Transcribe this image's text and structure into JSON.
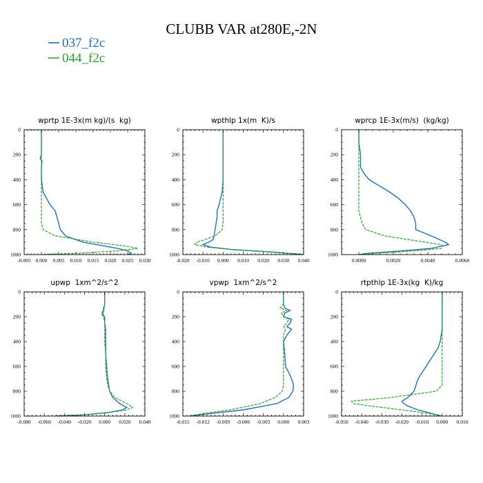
{
  "title": "CLUBB VAR at280E,-2N",
  "colors": {
    "s037": "#1f6fb3",
    "s044": "#2ca02c",
    "axis": "#000000"
  },
  "legend": [
    {
      "name": "037_f2c",
      "color": "#1f6fb3"
    },
    {
      "name": "044_f2c",
      "color": "#2ca02c"
    }
  ],
  "chart_data": [
    {
      "type": "line",
      "title": "wprtp 1E-3x(m kg)/(s kg)",
      "xlim": [
        -0.005,
        0.03
      ],
      "xticks": [
        "-0.005",
        "0.000",
        "0.005",
        "0.010",
        "0.015",
        "0.020",
        "0.025",
        "0.030"
      ],
      "ylim": [
        1000,
        0
      ],
      "yticks": [
        "0",
        "200",
        "400",
        "600",
        "800",
        "1000"
      ],
      "y": [
        0,
        100,
        200,
        230,
        250,
        300,
        400,
        500,
        600,
        650,
        700,
        750,
        800,
        850,
        900,
        930,
        950,
        970,
        990,
        1000
      ],
      "series": [
        {
          "name": "037_f2c",
          "values": [
            0.0,
            0.0,
            0.0,
            -0.0004,
            0.0002,
            0.0,
            0.0,
            0.0005,
            0.0025,
            0.004,
            0.0045,
            0.005,
            0.0055,
            0.007,
            0.012,
            0.018,
            0.022,
            0.025,
            0.026,
            0.025
          ]
        },
        {
          "name": "044_f2c",
          "values": [
            0.0,
            0.0,
            0.0,
            0.0,
            0.0,
            0.0,
            0.0,
            0.0,
            0.0,
            0.0,
            0.0,
            0.0,
            0.0005,
            0.004,
            0.015,
            0.024,
            0.028,
            0.022,
            0.01,
            0.0
          ]
        }
      ]
    },
    {
      "type": "line",
      "title": "wpthlp 1x(m K)/s",
      "xlim": [
        -0.02,
        0.04
      ],
      "xticks": [
        "-0.020",
        "-0.010",
        "0.000",
        "0.010",
        "0.020",
        "0.030",
        "0.040"
      ],
      "ylim": [
        1000,
        0
      ],
      "yticks": [
        "0",
        "200",
        "400",
        "600",
        "800",
        "1000"
      ],
      "y": [
        0,
        100,
        200,
        300,
        400,
        500,
        600,
        650,
        700,
        750,
        800,
        850,
        880,
        900,
        920,
        940,
        960,
        980,
        1000
      ],
      "series": [
        {
          "name": "037_f2c",
          "values": [
            0.0,
            0.0,
            0.0,
            0.0,
            0.0,
            -0.0005,
            -0.002,
            -0.003,
            -0.003,
            -0.0035,
            -0.004,
            -0.0045,
            -0.005,
            -0.007,
            -0.01,
            -0.006,
            0.005,
            0.025,
            0.04
          ]
        },
        {
          "name": "044_f2c",
          "values": [
            0.0,
            0.0,
            0.0,
            0.0,
            0.0,
            0.0,
            0.0,
            0.0,
            0.0,
            0.0,
            -0.0005,
            -0.004,
            -0.009,
            -0.013,
            -0.014,
            -0.008,
            0.005,
            0.025,
            0.04
          ]
        }
      ]
    },
    {
      "type": "line",
      "title": "wprcp 1E-3x(m/s) (kg/kg)",
      "xlim": [
        -0.001,
        0.006
      ],
      "xticks": [
        "0.0000",
        "0.0020",
        "0.0040",
        "0.0060"
      ],
      "ylim": [
        1000,
        0
      ],
      "yticks": [
        "0",
        "200",
        "400",
        "600",
        "800",
        "1000"
      ],
      "y": [
        0,
        100,
        200,
        300,
        350,
        400,
        450,
        500,
        550,
        600,
        650,
        700,
        750,
        800,
        850,
        900,
        920,
        950,
        970,
        990,
        1000
      ],
      "series": [
        {
          "name": "037_f2c",
          "values": [
            0.0,
            0.0,
            0.0001,
            0.0001,
            0.0003,
            0.0006,
            0.0012,
            0.0018,
            0.0023,
            0.0027,
            0.003,
            0.0032,
            0.0033,
            0.0033,
            0.0042,
            0.005,
            0.0052,
            0.0042,
            0.0025,
            0.0005,
            0.0
          ]
        },
        {
          "name": "044_f2c",
          "values": [
            0.0,
            0.0,
            0.0,
            0.0,
            0.0,
            0.0,
            0.0,
            0.0,
            0.0,
            0.0,
            0.0,
            0.0001,
            0.0002,
            0.0004,
            0.0015,
            0.0038,
            0.0048,
            0.0048,
            0.0032,
            0.001,
            0.0
          ]
        }
      ]
    },
    {
      "type": "line",
      "title": "upwp 1xm^2/s^2",
      "xlim": [
        -0.08,
        0.04
      ],
      "xticks": [
        "-0.080",
        "-0.060",
        "-0.040",
        "-0.020",
        "0.000",
        "0.020",
        "0.040"
      ],
      "ylim": [
        1000,
        0
      ],
      "yticks": [
        "0",
        "200",
        "400",
        "600",
        "800",
        "1000"
      ],
      "y": [
        0,
        100,
        150,
        180,
        200,
        250,
        300,
        400,
        500,
        600,
        700,
        750,
        800,
        850,
        900,
        930,
        950,
        970,
        990,
        1000
      ],
      "series": [
        {
          "name": "037_f2c",
          "values": [
            0.0,
            0.0,
            -0.001,
            -0.002,
            0.0,
            0.0,
            0.001,
            0.001,
            0.001,
            0.002,
            0.003,
            0.004,
            0.005,
            0.008,
            0.015,
            0.022,
            0.018,
            0.005,
            -0.02,
            -0.05
          ]
        },
        {
          "name": "044_f2c",
          "values": [
            0.0,
            0.0,
            -0.002,
            -0.003,
            -0.001,
            0.0,
            0.0,
            0.0,
            0.001,
            0.001,
            0.002,
            0.003,
            0.005,
            0.01,
            0.022,
            0.028,
            0.022,
            0.005,
            -0.02,
            -0.05
          ]
        }
      ]
    },
    {
      "type": "line",
      "title": "vpwp 1xm^2/s^2",
      "xlim": [
        -0.015,
        0.003
      ],
      "xticks": [
        "-0.015",
        "-0.012",
        "-0.009",
        "-0.006",
        "-0.003",
        "0.000",
        "0.003"
      ],
      "ylim": [
        1000,
        0
      ],
      "yticks": [
        "0",
        "200",
        "400",
        "600",
        "800",
        "1000"
      ],
      "y": [
        0,
        100,
        130,
        150,
        170,
        200,
        220,
        250,
        280,
        300,
        350,
        400,
        500,
        600,
        650,
        700,
        750,
        800,
        850,
        900,
        950,
        980,
        1000
      ],
      "series": [
        {
          "name": "037_f2c",
          "values": [
            0.0,
            0.0,
            0.0002,
            0.001,
            0.0002,
            0.0,
            0.0012,
            0.001,
            0.0005,
            0.0012,
            0.0005,
            0.0,
            0.0002,
            0.0003,
            0.0008,
            0.0012,
            0.0015,
            0.0014,
            0.0008,
            -0.001,
            -0.006,
            -0.011,
            -0.014
          ]
        },
        {
          "name": "044_f2c",
          "values": [
            0.0,
            0.0,
            -0.0005,
            0.0005,
            -0.0003,
            0.0,
            0.0008,
            0.0005,
            0.0,
            0.0003,
            0.0,
            0.0,
            0.0,
            0.0,
            0.0,
            0.0,
            0.0,
            -0.0002,
            -0.0012,
            -0.0035,
            -0.008,
            -0.012,
            -0.014
          ]
        }
      ]
    },
    {
      "type": "line",
      "title": "rtpthlp 1E-3x(kg K)/kg",
      "xlim": [
        -0.05,
        0.01
      ],
      "xticks": [
        "-0.050",
        "-0.040",
        "-0.030",
        "-0.020",
        "-0.010",
        "0.000",
        "0.010"
      ],
      "ylim": [
        1000,
        0
      ],
      "yticks": [
        "0",
        "200",
        "400",
        "600",
        "800",
        "1000"
      ],
      "y": [
        0,
        100,
        200,
        300,
        400,
        450,
        500,
        550,
        600,
        650,
        700,
        750,
        800,
        850,
        880,
        900,
        920,
        950,
        980,
        1000
      ],
      "series": [
        {
          "name": "037_f2c",
          "values": [
            0.0,
            0.0,
            0.0,
            0.0,
            -0.001,
            -0.002,
            -0.004,
            -0.006,
            -0.008,
            -0.01,
            -0.012,
            -0.013,
            -0.014,
            -0.017,
            -0.02,
            -0.019,
            -0.017,
            -0.012,
            -0.005,
            0.0
          ]
        },
        {
          "name": "044_f2c",
          "values": [
            0.0,
            0.0,
            0.0,
            0.0,
            0.0,
            0.0,
            0.0,
            0.0,
            0.0,
            0.0,
            0.0,
            0.0,
            -0.003,
            -0.025,
            -0.045,
            -0.044,
            -0.035,
            -0.02,
            -0.006,
            0.0
          ]
        }
      ]
    }
  ]
}
